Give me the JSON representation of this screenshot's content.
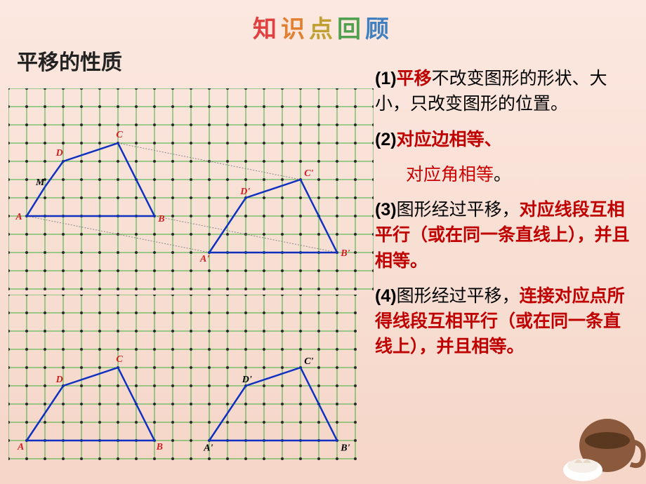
{
  "title": "知识点回顾",
  "subtitle": "平移的性质",
  "points": [
    {
      "num": "(1)",
      "hl": "平移",
      "rest": "不改变图形的形状、大小，只改变图形的位置。"
    },
    {
      "num": "(2)",
      "hl": "对应边相等、",
      "rest2": "对应角相等"
    },
    {
      "num": "(3)",
      "pre": "图形经过平移，",
      "hl": "对应线段互相平行（或在同一条直线上），并且相等。",
      "rest": ""
    },
    {
      "num": "(4)",
      "pre": "图形经过平移，",
      "hl": "连接对应点所得线段互相平行（或在同一条直线上），并且相等。",
      "rest": ""
    }
  ],
  "grid": {
    "cell": 26,
    "topCols": 20,
    "topRows": 11,
    "botCols": 19,
    "botRows": 9,
    "stroke": "#3cb03c",
    "dot_color": "#2a2a2a",
    "shape_color": "#1030c0",
    "dash_color": "#888888",
    "label_red": "#d02020",
    "label_black": "#000000"
  },
  "topDiagram": {
    "shape1": {
      "A": [
        1,
        7
      ],
      "B": [
        8,
        7
      ],
      "C": [
        6,
        3
      ],
      "D": [
        3,
        4
      ],
      "M": [
        2,
        5.4
      ],
      "labels": {
        "A": "A",
        "B": "B",
        "C": "C",
        "D": "D",
        "M": "M"
      }
    },
    "shape2": {
      "A": [
        11,
        9
      ],
      "B": [
        18,
        9
      ],
      "C": [
        16,
        5
      ],
      "D": [
        13,
        6
      ],
      "labels": {
        "A": "A'",
        "B": "B'",
        "C": "C'",
        "D": "D'"
      }
    },
    "dashes": [
      [
        [
          6,
          3
        ],
        [
          16,
          5
        ]
      ],
      [
        [
          1,
          7
        ],
        [
          11,
          9
        ]
      ],
      [
        [
          8,
          7
        ],
        [
          18,
          9
        ]
      ]
    ]
  },
  "bottomDiagram": {
    "shape1": {
      "A": [
        1,
        8
      ],
      "B": [
        8,
        8
      ],
      "C": [
        6,
        4
      ],
      "D": [
        3,
        5
      ],
      "labels": {
        "A": "A",
        "B": "B",
        "C": "C",
        "D": "D"
      }
    },
    "shape2": {
      "A": [
        11,
        8
      ],
      "B": [
        18,
        8
      ],
      "C": [
        16,
        4
      ],
      "D": [
        13,
        5
      ],
      "labels": {
        "A": "A'",
        "B": "B'",
        "C": "C'",
        "D": "D'"
      }
    }
  }
}
